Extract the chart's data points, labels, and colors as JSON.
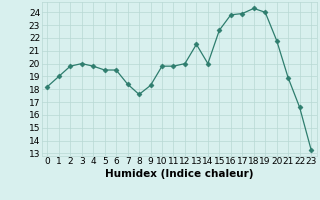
{
  "x": [
    0,
    1,
    2,
    3,
    4,
    5,
    6,
    7,
    8,
    9,
    10,
    11,
    12,
    13,
    14,
    15,
    16,
    17,
    18,
    19,
    20,
    21,
    22,
    23
  ],
  "y": [
    18.2,
    19.0,
    19.8,
    20.0,
    19.8,
    19.5,
    19.5,
    18.4,
    17.6,
    18.3,
    19.8,
    19.8,
    20.0,
    21.5,
    20.0,
    22.6,
    23.8,
    23.9,
    24.3,
    24.0,
    21.8,
    18.9,
    16.6,
    13.3
  ],
  "line_color": "#2e7d6e",
  "marker": "D",
  "marker_size": 2.5,
  "bg_color": "#d8f0ee",
  "grid_color": "#b8d8d4",
  "xlabel": "Humidex (Indice chaleur)",
  "ylabel_ticks": [
    13,
    14,
    15,
    16,
    17,
    18,
    19,
    20,
    21,
    22,
    23,
    24
  ],
  "xlim": [
    -0.5,
    23.5
  ],
  "ylim": [
    12.8,
    24.8
  ],
  "tick_fontsize": 6.5,
  "xlabel_fontsize": 7.5
}
